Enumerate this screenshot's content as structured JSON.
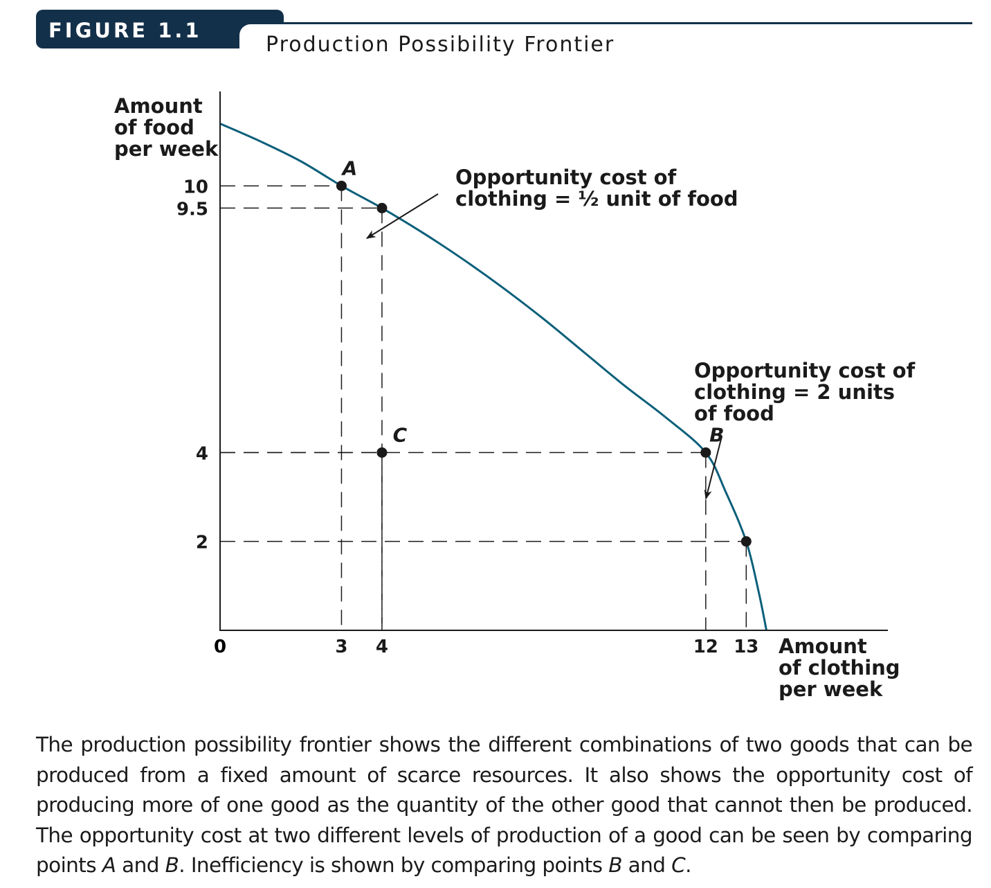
{
  "figure": {
    "label": "FIGURE 1.1",
    "title": "Production Possibility Frontier"
  },
  "chart_data": {
    "type": "line",
    "title": "Production Possibility Frontier",
    "xlabel": [
      "Amount",
      "of clothing",
      "per week"
    ],
    "ylabel": [
      "Amount",
      "of food",
      "per week"
    ],
    "origin_label": "0",
    "xlim": [
      0,
      16.5
    ],
    "ylim": [
      0,
      12.0
    ],
    "x_ticks": [
      {
        "value": 3,
        "label": "3"
      },
      {
        "value": 4,
        "label": "4"
      },
      {
        "value": 12,
        "label": "12"
      },
      {
        "value": 13,
        "label": "13"
      }
    ],
    "y_ticks": [
      {
        "value": 10,
        "label": "10"
      },
      {
        "value": 9.5,
        "label": "9.5"
      },
      {
        "value": 4,
        "label": "4"
      },
      {
        "value": 2,
        "label": "2"
      }
    ],
    "frontier": {
      "x": [
        0,
        1,
        2,
        3,
        4,
        5,
        6,
        7,
        8,
        9,
        10,
        11,
        12,
        12.5,
        13,
        13.3,
        13.5
      ],
      "y": [
        11.4,
        11.0,
        10.55,
        10.0,
        9.5,
        8.95,
        8.35,
        7.7,
        7.0,
        6.25,
        5.5,
        4.8,
        4.0,
        3.1,
        2.0,
        0.9,
        0.0
      ]
    },
    "color": "#0b5f7a",
    "points": [
      {
        "label": "A",
        "x": 3,
        "y": 10
      },
      {
        "label": "",
        "x": 4,
        "y": 9.5
      },
      {
        "label": "C",
        "x": 4,
        "y": 4
      },
      {
        "label": "B",
        "x": 12,
        "y": 4
      },
      {
        "label": "",
        "x": 13,
        "y": 2
      }
    ],
    "annotations": [
      {
        "lines": [
          "Opportunity cost of",
          "clothing = ½ unit of food"
        ]
      },
      {
        "lines": [
          "Opportunity cost of",
          "clothing = 2 units",
          "of food"
        ]
      }
    ]
  },
  "caption": {
    "part1": "The production possibility frontier shows the different combinations of two goods that can be produced from a fixed amount of scarce resources. It also shows the opportunity cost of producing more of one good as the quantity of the other good that cannot then be produced. The opportunity cost at two different levels of production of a good can be seen by comparing points ",
    "point_a": "A",
    "part2": " and ",
    "point_b": "B",
    "part3": ". Inefficiency is shown by comparing points ",
    "point_b2": "B",
    "part4": " and ",
    "point_c": "C",
    "part5": "."
  }
}
